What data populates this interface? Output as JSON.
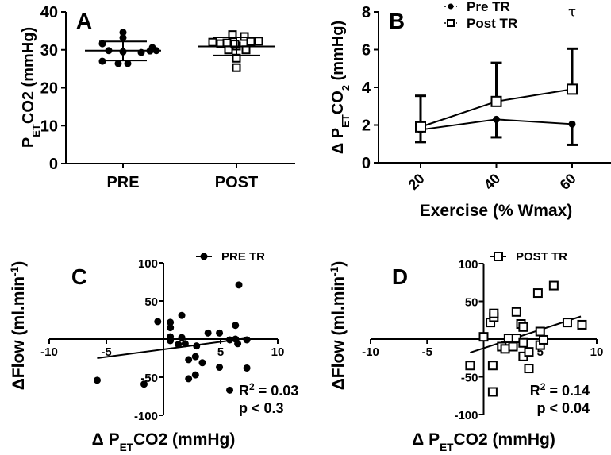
{
  "chart_data": [
    {
      "panel": "A",
      "type": "scatter",
      "letter": "A",
      "ylabel_parts": [
        [
          "P",
          ""
        ],
        [
          "ET",
          "sub"
        ],
        [
          "CO2 (mmHg)",
          ""
        ]
      ],
      "xlabel": "",
      "ylim": [
        0,
        40
      ],
      "yticks": [
        0,
        10,
        20,
        30,
        40
      ],
      "categories": [
        "PRE",
        "POST"
      ],
      "series": [
        {
          "name": "PRE",
          "marker": "circle",
          "mean": 29.8,
          "sd_upper": 32.2,
          "sd_lower": 27.2,
          "values": [
            31.6,
            33.2,
            34.6,
            30.6,
            29.8,
            29.5,
            29.3,
            29.7,
            29.8,
            27.0,
            26.4,
            26.4
          ]
        },
        {
          "name": "POST",
          "marker": "square",
          "mean": 30.9,
          "sd_upper": 33.3,
          "sd_lower": 28.5,
          "values": [
            32.0,
            31.6,
            34.0,
            33.5,
            32.3,
            31.8,
            31.0,
            30.0,
            30.0,
            31.5,
            27.8,
            25.3,
            32.2
          ]
        }
      ]
    },
    {
      "panel": "B",
      "type": "line",
      "letter": "B",
      "ylabel_parts": [
        [
          "Δ P",
          ""
        ],
        [
          "ET",
          "sub"
        ],
        [
          "CO",
          ""
        ],
        [
          "2",
          "sub"
        ],
        [
          " (mmHg)",
          ""
        ]
      ],
      "xlabel": "Exercise (% Wmax)",
      "ylim": [
        0,
        8
      ],
      "yticks": [
        0,
        2,
        4,
        6,
        8
      ],
      "x": [
        20,
        40,
        60
      ],
      "xtick_labels": [
        "20",
        "40",
        "60"
      ],
      "annotation": "τ",
      "series": [
        {
          "name": "Pre TR",
          "marker": "circle",
          "values": [
            1.75,
            2.3,
            2.05
          ],
          "err_lower": [
            1.1,
            1.35,
            0.95
          ]
        },
        {
          "name": "Post TR",
          "marker": "square",
          "values": [
            1.9,
            3.25,
            3.9
          ],
          "err_upper": [
            3.55,
            5.3,
            6.05
          ]
        }
      ],
      "legend": "top"
    },
    {
      "panel": "C",
      "type": "scatter",
      "letter": "C",
      "ylabel_parts": [
        [
          "ΔFlow (ml.min",
          ""
        ],
        [
          "-1",
          "sup"
        ],
        [
          ")",
          ""
        ]
      ],
      "xlabel_parts": [
        [
          "Δ P",
          ""
        ],
        [
          "ET",
          "sub"
        ],
        [
          "CO2 (mmHg)",
          ""
        ]
      ],
      "xlim": [
        -10,
        10
      ],
      "ylim": [
        -100,
        100
      ],
      "xticks": [
        -10,
        -5,
        5,
        10
      ],
      "yticks": [
        -100,
        -50,
        50,
        100
      ],
      "legend_label": "PRE TR",
      "stats": {
        "r2_label": "R",
        "r2_sup": "2",
        "r2_value": " = 0.03",
        "p": "p < 0.3"
      },
      "regression": [
        [
          -5.8,
          -25
        ],
        [
          7.3,
          1
        ]
      ],
      "points": [
        [
          -0.5,
          23
        ],
        [
          0.6,
          22
        ],
        [
          0.6,
          15
        ],
        [
          0.6,
          3
        ],
        [
          0.6,
          -2
        ],
        [
          1.6,
          31
        ],
        [
          1.6,
          2
        ],
        [
          1.3,
          -7
        ],
        [
          1.9,
          -6
        ],
        [
          2.9,
          -9
        ],
        [
          3.9,
          8
        ],
        [
          4.9,
          8
        ],
        [
          5.8,
          -1
        ],
        [
          6.3,
          18
        ],
        [
          6.3,
          0
        ],
        [
          6.5,
          -6
        ],
        [
          7.3,
          -1
        ],
        [
          6.6,
          71
        ],
        [
          2.2,
          -27
        ],
        [
          2.8,
          -23
        ],
        [
          3.4,
          -31
        ],
        [
          4.9,
          -37
        ],
        [
          7.3,
          -38
        ],
        [
          2.2,
          -52
        ],
        [
          2.8,
          -47
        ],
        [
          -5.8,
          -54
        ],
        [
          -1.7,
          -59
        ],
        [
          5.8,
          -67
        ]
      ]
    },
    {
      "panel": "D",
      "type": "scatter",
      "letter": "D",
      "ylabel_parts": [
        [
          "ΔFlow (ml.min",
          ""
        ],
        [
          "-1",
          "sup"
        ],
        [
          ")",
          ""
        ]
      ],
      "xlabel_parts": [
        [
          "Δ P",
          ""
        ],
        [
          "ET",
          "sub"
        ],
        [
          "CO2 (mmHg)",
          ""
        ]
      ],
      "xlim": [
        -10,
        10
      ],
      "ylim": [
        -100,
        100
      ],
      "xticks": [
        -10,
        -5,
        5,
        10
      ],
      "yticks": [
        -100,
        -50,
        50,
        100
      ],
      "legend_label": "POST TR",
      "stats": {
        "r2_label": "R",
        "r2_sup": "2",
        "r2_value": " = 0.14",
        "p": "p < 0.04"
      },
      "regression": [
        [
          -1.2,
          -18
        ],
        [
          8.6,
          30
        ]
      ],
      "points": [
        [
          0,
          3
        ],
        [
          0.6,
          22
        ],
        [
          0.9,
          29
        ],
        [
          0.9,
          34
        ],
        [
          0.8,
          -35
        ],
        [
          0.8,
          -70
        ],
        [
          -1.2,
          -35
        ],
        [
          1.6,
          -10
        ],
        [
          1.9,
          -13
        ],
        [
          2.2,
          1
        ],
        [
          2.6,
          -10
        ],
        [
          2.9,
          1
        ],
        [
          2.9,
          36
        ],
        [
          3.3,
          20
        ],
        [
          3.5,
          16
        ],
        [
          3.5,
          -5
        ],
        [
          3.5,
          -23
        ],
        [
          4,
          -17
        ],
        [
          4,
          -39
        ],
        [
          4.8,
          61
        ],
        [
          6.2,
          71
        ],
        [
          5,
          10
        ],
        [
          5,
          -8
        ],
        [
          5.3,
          -1
        ],
        [
          7.4,
          22
        ],
        [
          8.7,
          19
        ]
      ]
    }
  ]
}
